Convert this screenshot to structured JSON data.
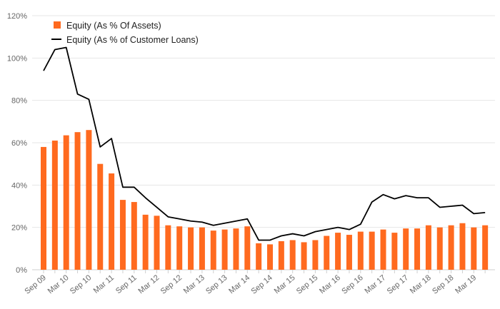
{
  "chart_data": {
    "type": "bar",
    "title": "",
    "xlabel": "",
    "ylabel": "",
    "ylim": [
      0,
      120
    ],
    "y_ticks": [
      "0%",
      "20%",
      "40%",
      "60%",
      "80%",
      "100%",
      "120%"
    ],
    "y_tick_values": [
      0,
      20,
      40,
      60,
      80,
      100,
      120
    ],
    "x_tick_labels": [
      "Sep 09",
      "Mar 10",
      "Sep 10",
      "Mar 11",
      "Sep 11",
      "Mar 12",
      "Sep 12",
      "Mar 13",
      "Sep 13",
      "Mar 14",
      "Sep 14",
      "Mar 15",
      "Sep 15",
      "Mar 16",
      "Sep 16",
      "Mar 17",
      "Sep 17",
      "Mar 18",
      "Sep 18",
      "Mar 19"
    ],
    "x_tick_positions": [
      0,
      2,
      4,
      6,
      8,
      10,
      12,
      14,
      16,
      18,
      20,
      22,
      24,
      26,
      28,
      30,
      32,
      34,
      36,
      38
    ],
    "grid": true,
    "legend_position": "top-left",
    "colors": {
      "bar": "#ff6a1f",
      "line": "#000000"
    },
    "series": [
      {
        "name": "Equity (As % Of Assets)",
        "type": "bar",
        "values": [
          58,
          61,
          63.5,
          65,
          66,
          50,
          45.5,
          33,
          32,
          26,
          25.5,
          21,
          20.5,
          20,
          20,
          18.5,
          19,
          19.5,
          20.5,
          12.5,
          12,
          13.5,
          14,
          13,
          14,
          16,
          17.5,
          16.5,
          18,
          18,
          19,
          17.5,
          19.5,
          19.5,
          21,
          20,
          21,
          22,
          20,
          21
        ]
      },
      {
        "name": "Equity (As % of Customer Loans)",
        "type": "line",
        "values": [
          94,
          104,
          105,
          83,
          80.5,
          58,
          62,
          39,
          39,
          34,
          29.5,
          25,
          24,
          23,
          22.5,
          21,
          22,
          23,
          24,
          14,
          14,
          16,
          17,
          16,
          18,
          19,
          20,
          19,
          21.5,
          32,
          35.5,
          33.5,
          35,
          34,
          34,
          29.5,
          30,
          30.5,
          26.5,
          27
        ]
      }
    ]
  }
}
